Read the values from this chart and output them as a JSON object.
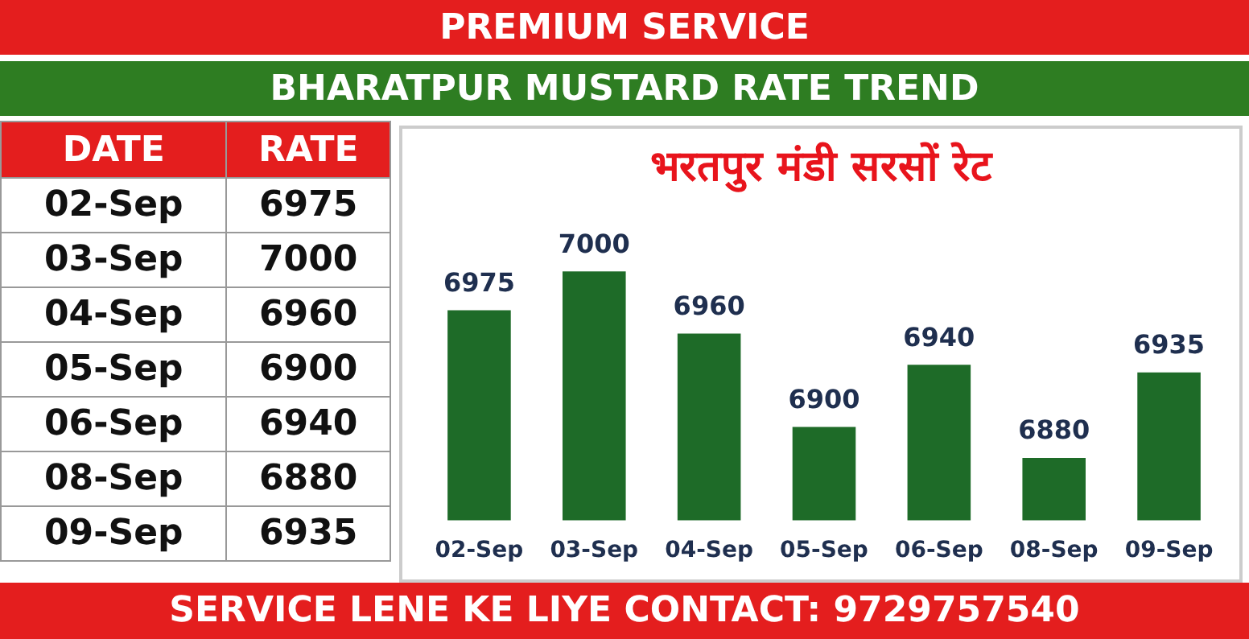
{
  "chart_data": [
    {
      "type": "other",
      "annotations": [
        "DATE",
        "RATE"
      ],
      "categories": [
        "02-Sep",
        "03-Sep",
        "04-Sep",
        "05-Sep",
        "06-Sep",
        "08-Sep",
        "09-Sep"
      ],
      "values": [
        6975,
        7000,
        6960,
        6900,
        6940,
        6880,
        6935
      ],
      "data_labels": true
    },
    {
      "type": "bar",
      "title": "BHARATPUR MUSTARD RATE TREND",
      "subtitle": "भरतपुर मंडी सरसों रेट",
      "annotations": [
        "PREMIUM SERVICE",
        "SERVICE LENE KE LIYE CONTACT: 9729757540"
      ],
      "categories": [
        "02-Sep",
        "03-Sep",
        "04-Sep",
        "05-Sep",
        "06-Sep",
        "08-Sep",
        "09-Sep"
      ],
      "values": [
        6975,
        7000,
        6960,
        6900,
        6940,
        6880,
        6935
      ],
      "color": "#1e6b28",
      "tick_labels": "x",
      "grid": false,
      "legend": false,
      "data_labels": true
    }
  ]
}
